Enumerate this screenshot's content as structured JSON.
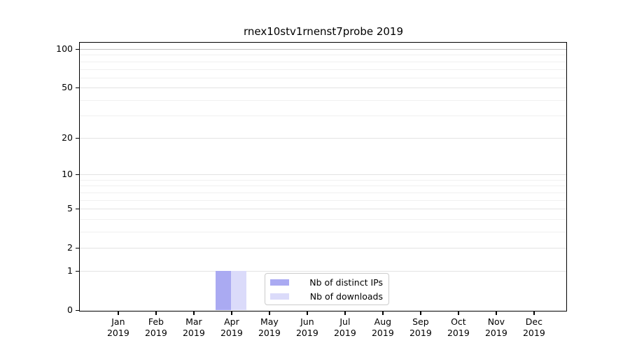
{
  "chart_data": {
    "type": "bar",
    "title": "rnex10stv1rnenst7probe 2019",
    "categories": [
      "Jan",
      "Feb",
      "Mar",
      "Apr",
      "May",
      "Jun",
      "Jul",
      "Aug",
      "Sep",
      "Oct",
      "Nov",
      "Dec"
    ],
    "category_year": "2019",
    "series": [
      {
        "name": "Nb of distinct IPs",
        "color": "#aaaaf2",
        "values": [
          0,
          0,
          0,
          1,
          0,
          0,
          0,
          0,
          0,
          0,
          0,
          0
        ]
      },
      {
        "name": "Nb of downloads",
        "color": "#dbdbfa",
        "values": [
          0,
          0,
          0,
          1,
          0,
          0,
          0,
          0,
          0,
          0,
          0,
          0
        ]
      }
    ],
    "yscale": "log1p",
    "ylim": [
      0,
      112
    ],
    "ytick_labels": [
      "0",
      "1",
      "2",
      "5",
      "10",
      "20",
      "50",
      "100"
    ],
    "ytick_values": [
      0,
      1,
      2,
      5,
      10,
      20,
      50,
      100
    ],
    "yminor_values": [
      3,
      4,
      6,
      7,
      8,
      9,
      30,
      40,
      60,
      70,
      80,
      90
    ],
    "grid": true,
    "grid_color_minor": "#f0f0f0",
    "grid_color_major": "#e3e3e3",
    "grid_color_top": "#c2c2c2",
    "legend_position": "bottom-center"
  }
}
